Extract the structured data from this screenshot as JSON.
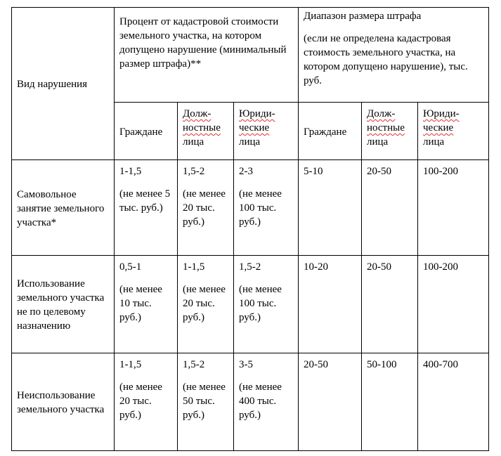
{
  "header": {
    "violation_type": "Вид нарушения",
    "percent_group": "Процент от кадастровой стоимости земельного участка, на котором допущено нарушение (минимальный размер штрафа)**",
    "range_group_title": "Диапазон размера штрафа",
    "range_group_note": "(если не определена кадастровая стоимость земельного участка, на котором допущено нарушение), тыс. руб.",
    "citizens": "Граждане",
    "officials_1": "Долж-",
    "officials_2": "ностные",
    "officials_3": "лица",
    "legal_1": "Юриди-",
    "legal_2": "ческие",
    "legal_3": "лица"
  },
  "rows": [
    {
      "violation": "Самовольное занятие земельного участка*",
      "pct_citizens": "1-1,5",
      "pct_citizens_min": "(не менее 5 тыс. руб.)",
      "pct_officials": "1,5-2",
      "pct_officials_min": "(не менее 20 тыс. руб.)",
      "pct_legal": "2-3",
      "pct_legal_min": "(не менее 100 тыс. руб.)",
      "range_citizens": "5-10",
      "range_officials": "20-50",
      "range_legal": "100-200"
    },
    {
      "violation": "Использование земельного участка не по целевому назначению",
      "pct_citizens": "0,5-1",
      "pct_citizens_min": "(не менее 10 тыс. руб.)",
      "pct_officials": "1-1,5",
      "pct_officials_min": "(не менее 20 тыс. руб.)",
      "pct_legal": "1,5-2",
      "pct_legal_min": "(не менее 100 тыс. руб.)",
      "range_citizens": "10-20",
      "range_officials": "20-50",
      "range_legal": "100-200"
    },
    {
      "violation": "Неиспользование земельного участка",
      "pct_citizens": "1-1,5",
      "pct_citizens_min": "(не менее 20 тыс. руб.)",
      "pct_officials": "1,5-2",
      "pct_officials_min": "(не менее 50 тыс. руб.)",
      "pct_legal": "3-5",
      "pct_legal_min": "(не менее 400 тыс. руб.)",
      "range_citizens": "20-50",
      "range_officials": "50-100",
      "range_legal": "400-700"
    }
  ]
}
